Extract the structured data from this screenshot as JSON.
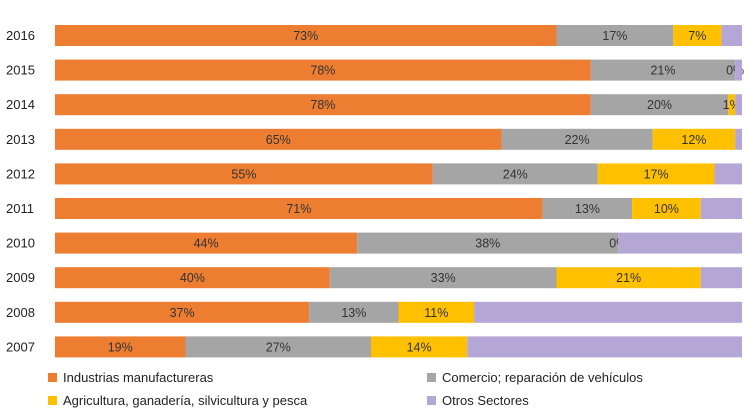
{
  "colors": {
    "manufacturing": "#ed7d31",
    "commerce": "#a5a5a5",
    "agriculture": "#ffc000",
    "other": "#b4a7d6"
  },
  "chart_data": {
    "type": "bar",
    "orientation": "horizontal",
    "stacked": true,
    "categories": [
      "2016",
      "2015",
      "2014",
      "2013",
      "2012",
      "2011",
      "2010",
      "2009",
      "2008",
      "2007"
    ],
    "xlim": [
      0,
      100
    ],
    "grid": false,
    "legend_position": "bottom",
    "series": [
      {
        "name": "Industrias manufactureras",
        "color": "#ed7d31",
        "values": [
          73,
          78,
          78,
          65,
          55,
          71,
          44,
          40,
          37,
          19
        ],
        "labels": [
          "73%",
          "78%",
          "78%",
          "65%",
          "55%",
          "71%",
          "44%",
          "40%",
          "37%",
          "19%"
        ]
      },
      {
        "name": "Comercio; reparación de vehículos",
        "color": "#a5a5a5",
        "values": [
          17,
          21,
          20,
          22,
          24,
          13,
          38,
          33,
          13,
          27
        ],
        "labels": [
          "17%",
          "21%",
          "20%",
          "22%",
          "24%",
          "13%",
          "38%",
          "33%",
          "13%",
          "27%"
        ]
      },
      {
        "name": "Agricultura, ganadería,  silvicultura y pesca",
        "color": "#ffc000",
        "values": [
          7,
          0,
          1,
          12,
          17,
          10,
          0,
          21,
          11,
          14
        ],
        "labels": [
          "7%",
          "0%",
          "1%",
          "12%",
          "17%",
          "10%",
          "0%",
          "21%",
          "11%",
          "14%"
        ]
      },
      {
        "name": "Otros Sectores",
        "color": "#b4a7d6",
        "values": [
          3,
          1,
          1,
          1,
          4,
          6,
          18,
          6,
          39,
          40
        ],
        "labels": [
          "",
          "",
          "",
          "",
          "",
          "",
          "",
          "",
          "",
          ""
        ]
      }
    ]
  }
}
